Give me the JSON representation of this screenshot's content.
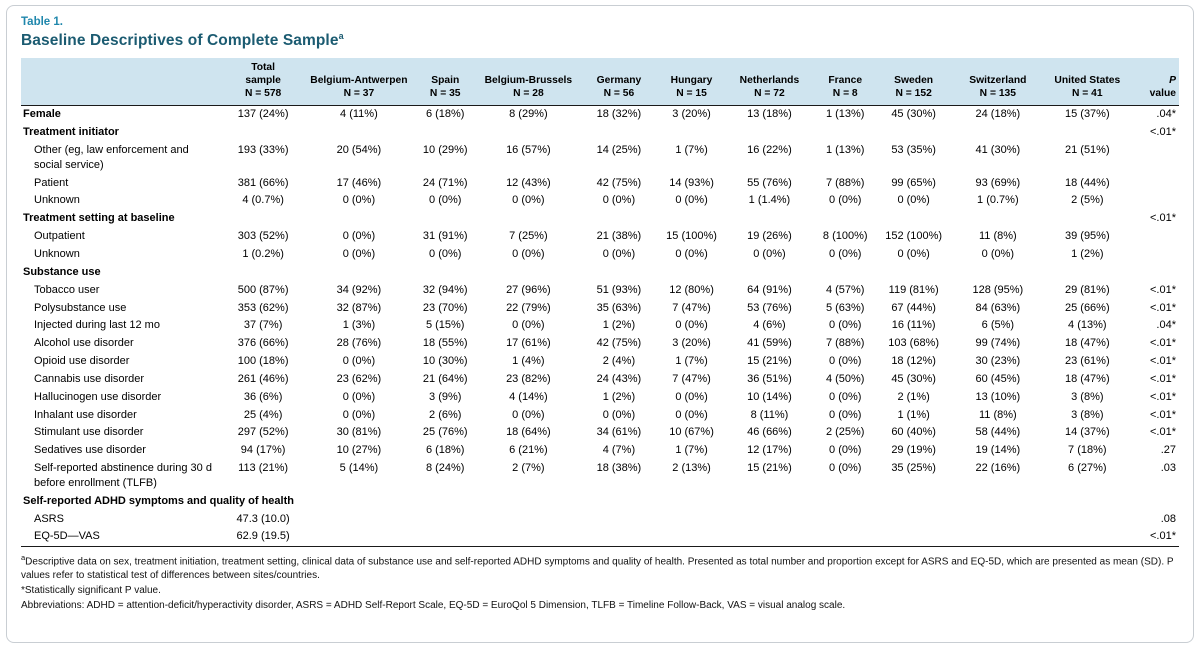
{
  "meta": {
    "table_label": "Table 1.",
    "title": "Baseline Descriptives of Complete Sample",
    "title_sup": "a"
  },
  "colors": {
    "header_bg": "#cfe4ef",
    "table_label_teal": "#1f87ac",
    "title_teal": "#1b5b71",
    "rule_black": "#1a1a1a",
    "frame_border": "#c9ced3"
  },
  "header": {
    "label_col": "",
    "columns": [
      {
        "lines": [
          "Total",
          "sample"
        ],
        "n": "N = 578"
      },
      {
        "lines": [
          "Belgium-Antwerpen"
        ],
        "n": "N = 37"
      },
      {
        "lines": [
          "Spain"
        ],
        "n": "N = 35"
      },
      {
        "lines": [
          "Belgium-Brussels"
        ],
        "n": "N = 28"
      },
      {
        "lines": [
          "Germany"
        ],
        "n": "N = 56"
      },
      {
        "lines": [
          "Hungary"
        ],
        "n": "N = 15"
      },
      {
        "lines": [
          "Netherlands"
        ],
        "n": "N = 72"
      },
      {
        "lines": [
          "France"
        ],
        "n": "N = 8"
      },
      {
        "lines": [
          "Sweden"
        ],
        "n": "N = 152"
      },
      {
        "lines": [
          "Switzerland"
        ],
        "n": "N = 135"
      },
      {
        "lines": [
          "United States"
        ],
        "n": "N = 41"
      }
    ],
    "p_col": {
      "lines": [
        "P",
        "value"
      ]
    }
  },
  "rows": [
    {
      "label": "Female",
      "bold": true,
      "indent": 0,
      "section": false,
      "values": [
        "137 (24%)",
        "4 (11%)",
        "6 (18%)",
        "8 (29%)",
        "18 (32%)",
        "3 (20%)",
        "13 (18%)",
        "1 (13%)",
        "45 (30%)",
        "24 (18%)",
        "15 (37%)"
      ],
      "p": ".04*"
    },
    {
      "label": "Treatment initiator",
      "bold": true,
      "indent": 0,
      "section": true,
      "values": [],
      "p": "<.01*"
    },
    {
      "label": "Other (eg, law enforcement and social service)",
      "bold": false,
      "indent": 1,
      "section": false,
      "values": [
        "193 (33%)",
        "20 (54%)",
        "10 (29%)",
        "16 (57%)",
        "14 (25%)",
        "1 (7%)",
        "16 (22%)",
        "1 (13%)",
        "53 (35%)",
        "41 (30%)",
        "21 (51%)"
      ],
      "p": ""
    },
    {
      "label": "Patient",
      "bold": false,
      "indent": 1,
      "section": false,
      "values": [
        "381 (66%)",
        "17 (46%)",
        "24 (71%)",
        "12 (43%)",
        "42 (75%)",
        "14 (93%)",
        "55 (76%)",
        "7 (88%)",
        "99 (65%)",
        "93 (69%)",
        "18 (44%)"
      ],
      "p": ""
    },
    {
      "label": "Unknown",
      "bold": false,
      "indent": 1,
      "section": false,
      "values": [
        "4 (0.7%)",
        "0 (0%)",
        "0 (0%)",
        "0 (0%)",
        "0 (0%)",
        "0 (0%)",
        "1 (1.4%)",
        "0 (0%)",
        "0 (0%)",
        "1 (0.7%)",
        "2 (5%)"
      ],
      "p": ""
    },
    {
      "label": "Treatment setting at baseline",
      "bold": true,
      "indent": 0,
      "section": true,
      "values": [],
      "p": "<.01*"
    },
    {
      "label": "Outpatient",
      "bold": false,
      "indent": 1,
      "section": false,
      "values": [
        "303 (52%)",
        "0 (0%)",
        "31 (91%)",
        "7 (25%)",
        "21 (38%)",
        "15 (100%)",
        "19 (26%)",
        "8 (100%)",
        "152 (100%)",
        "11 (8%)",
        "39 (95%)"
      ],
      "p": ""
    },
    {
      "label": "Unknown",
      "bold": false,
      "indent": 1,
      "section": false,
      "values": [
        "1 (0.2%)",
        "0 (0%)",
        "0 (0%)",
        "0 (0%)",
        "0 (0%)",
        "0 (0%)",
        "0 (0%)",
        "0 (0%)",
        "0 (0%)",
        "0 (0%)",
        "1 (2%)"
      ],
      "p": ""
    },
    {
      "label": "Substance use",
      "bold": true,
      "indent": 0,
      "section": true,
      "values": [],
      "p": ""
    },
    {
      "label": "Tobacco user",
      "bold": false,
      "indent": 1,
      "section": false,
      "values": [
        "500 (87%)",
        "34 (92%)",
        "32 (94%)",
        "27 (96%)",
        "51 (93%)",
        "12 (80%)",
        "64 (91%)",
        "4 (57%)",
        "119 (81%)",
        "128 (95%)",
        "29 (81%)"
      ],
      "p": "<.01*"
    },
    {
      "label": "Polysubstance use",
      "bold": false,
      "indent": 1,
      "section": false,
      "values": [
        "353 (62%)",
        "32 (87%)",
        "23 (70%)",
        "22 (79%)",
        "35 (63%)",
        "7 (47%)",
        "53 (76%)",
        "5 (63%)",
        "67 (44%)",
        "84 (63%)",
        "25 (66%)"
      ],
      "p": "<.01*"
    },
    {
      "label": "Injected during last 12 mo",
      "bold": false,
      "indent": 1,
      "section": false,
      "values": [
        "37 (7%)",
        "1 (3%)",
        "5 (15%)",
        "0 (0%)",
        "1 (2%)",
        "0 (0%)",
        "4 (6%)",
        "0 (0%)",
        "16 (11%)",
        "6 (5%)",
        "4 (13%)"
      ],
      "p": ".04*"
    },
    {
      "label": "Alcohol use disorder",
      "bold": false,
      "indent": 1,
      "section": false,
      "values": [
        "376 (66%)",
        "28 (76%)",
        "18 (55%)",
        "17 (61%)",
        "42 (75%)",
        "3 (20%)",
        "41 (59%)",
        "7 (88%)",
        "103 (68%)",
        "99 (74%)",
        "18 (47%)"
      ],
      "p": "<.01*"
    },
    {
      "label": "Opioid use disorder",
      "bold": false,
      "indent": 1,
      "section": false,
      "values": [
        "100 (18%)",
        "0 (0%)",
        "10 (30%)",
        "1 (4%)",
        "2 (4%)",
        "1 (7%)",
        "15 (21%)",
        "0 (0%)",
        "18 (12%)",
        "30 (23%)",
        "23 (61%)"
      ],
      "p": "<.01*"
    },
    {
      "label": "Cannabis use disorder",
      "bold": false,
      "indent": 1,
      "section": false,
      "values": [
        "261 (46%)",
        "23 (62%)",
        "21 (64%)",
        "23 (82%)",
        "24 (43%)",
        "7 (47%)",
        "36 (51%)",
        "4 (50%)",
        "45 (30%)",
        "60 (45%)",
        "18 (47%)"
      ],
      "p": "<.01*"
    },
    {
      "label": "Hallucinogen use disorder",
      "bold": false,
      "indent": 1,
      "section": false,
      "values": [
        "36 (6%)",
        "0 (0%)",
        "3 (9%)",
        "4 (14%)",
        "1 (2%)",
        "0 (0%)",
        "10 (14%)",
        "0 (0%)",
        "2 (1%)",
        "13 (10%)",
        "3 (8%)"
      ],
      "p": "<.01*"
    },
    {
      "label": "Inhalant use disorder",
      "bold": false,
      "indent": 1,
      "section": false,
      "values": [
        "25 (4%)",
        "0 (0%)",
        "2 (6%)",
        "0 (0%)",
        "0 (0%)",
        "0 (0%)",
        "8 (11%)",
        "0 (0%)",
        "1 (1%)",
        "11 (8%)",
        "3 (8%)"
      ],
      "p": "<.01*"
    },
    {
      "label": "Stimulant use disorder",
      "bold": false,
      "indent": 1,
      "section": false,
      "values": [
        "297 (52%)",
        "30 (81%)",
        "25 (76%)",
        "18 (64%)",
        "34 (61%)",
        "10 (67%)",
        "46 (66%)",
        "2 (25%)",
        "60 (40%)",
        "58 (44%)",
        "14 (37%)"
      ],
      "p": "<.01*"
    },
    {
      "label": "Sedatives use disorder",
      "bold": false,
      "indent": 1,
      "section": false,
      "values": [
        "94 (17%)",
        "10 (27%)",
        "6 (18%)",
        "6 (21%)",
        "4 (7%)",
        "1 (7%)",
        "12 (17%)",
        "0 (0%)",
        "29 (19%)",
        "19 (14%)",
        "7 (18%)"
      ],
      "p": ".27"
    },
    {
      "label": "Self-reported abstinence during 30 d before enrollment (TLFB)",
      "bold": false,
      "indent": 1,
      "section": false,
      "values": [
        "113 (21%)",
        "5 (14%)",
        "8 (24%)",
        "2 (7%)",
        "18 (38%)",
        "2 (13%)",
        "15 (21%)",
        "0 (0%)",
        "35 (25%)",
        "22 (16%)",
        "6 (27%)"
      ],
      "p": ".03"
    },
    {
      "label": "Self-reported ADHD symptoms and quality of health",
      "bold": true,
      "indent": 0,
      "section": true,
      "values": [],
      "p": ""
    },
    {
      "label": "ASRS",
      "bold": false,
      "indent": 1,
      "section": false,
      "values": [
        "47.3 (10.0)",
        "",
        "",
        "",
        "",
        "",
        "",
        "",
        "",
        "",
        ""
      ],
      "p": ".08"
    },
    {
      "label": "EQ-5D—VAS",
      "bold": false,
      "indent": 1,
      "section": false,
      "values": [
        "62.9 (19.5)",
        "",
        "",
        "",
        "",
        "",
        "",
        "",
        "",
        "",
        ""
      ],
      "p": "<.01*"
    }
  ],
  "footnotes": [
    {
      "sup": "a",
      "text": "Descriptive data on sex, treatment initiation, treatment setting, clinical data of substance use and self-reported ADHD symptoms and quality of health. Presented as total number and proportion except for ASRS and EQ-5D, which are presented as mean (SD). P values refer to statistical test of differences between sites/countries."
    },
    {
      "sup": "",
      "text": "*Statistically significant P value."
    },
    {
      "sup": "",
      "text": "Abbreviations: ADHD = attention-deficit/hyperactivity disorder, ASRS = ADHD Self-Report Scale, EQ-5D = EuroQol 5 Dimension, TLFB = Timeline Follow-Back, VAS = visual analog scale."
    }
  ]
}
